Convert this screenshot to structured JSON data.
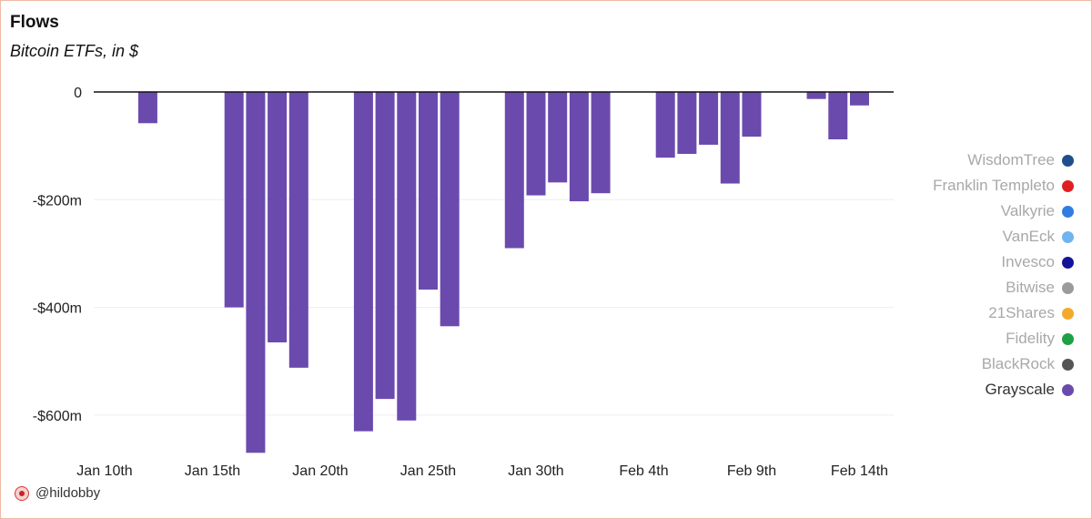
{
  "chart_data": {
    "type": "bar",
    "title": "Flows",
    "subtitle": "Bitcoin ETFs, in $",
    "xlabel": "",
    "ylabel": "",
    "unit": "$m",
    "ylim": [
      -670,
      0
    ],
    "yticks": [
      {
        "value": 0,
        "label": "0"
      },
      {
        "value": -200,
        "label": "-$200m"
      },
      {
        "value": -400,
        "label": "-$400m"
      },
      {
        "value": -600,
        "label": "-$600m"
      }
    ],
    "xticks": [
      {
        "day": 0,
        "label": "Jan 10th"
      },
      {
        "day": 5,
        "label": "Jan 15th"
      },
      {
        "day": 10,
        "label": "Jan 20th"
      },
      {
        "day": 15,
        "label": "Jan 25th"
      },
      {
        "day": 20,
        "label": "Jan 30th"
      },
      {
        "day": 25,
        "label": "Feb 4th"
      },
      {
        "day": 30,
        "label": "Feb 9th"
      },
      {
        "day": 35,
        "label": "Feb 14th"
      }
    ],
    "x_days": [
      2,
      6,
      7,
      8,
      9,
      12,
      13,
      14,
      15,
      16,
      19,
      20,
      21,
      22,
      23,
      26,
      27,
      28,
      29,
      30,
      33,
      34,
      35
    ],
    "series": [
      {
        "name": "Grayscale",
        "color": "#6b4aad",
        "values": [
          -58,
          -400,
          -670,
          -465,
          -512,
          -630,
          -570,
          -610,
          -367,
          -435,
          -290,
          -192,
          -168,
          -203,
          -188,
          -122,
          -115,
          -98,
          -170,
          -83,
          -13,
          -88,
          -25
        ]
      }
    ],
    "legend": [
      {
        "name": "WisdomTree",
        "color": "#1f4e8c",
        "active": false
      },
      {
        "name": "Franklin Templeto",
        "color": "#e02020",
        "active": false
      },
      {
        "name": "Valkyrie",
        "color": "#2f7de1",
        "active": false
      },
      {
        "name": "VanEck",
        "color": "#6fb4f0",
        "active": false
      },
      {
        "name": "Invesco",
        "color": "#14149a",
        "active": false
      },
      {
        "name": "Bitwise",
        "color": "#9b9b9b",
        "active": false
      },
      {
        "name": "21Shares",
        "color": "#f3a92b",
        "active": false
      },
      {
        "name": "Fidelity",
        "color": "#1fa045",
        "active": false
      },
      {
        "name": "BlackRock",
        "color": "#555555",
        "active": false
      },
      {
        "name": "Grayscale",
        "color": "#6b4aad",
        "active": true
      }
    ],
    "legend_position": "right",
    "grid": true
  },
  "footer": {
    "handle": "@hildobby"
  }
}
